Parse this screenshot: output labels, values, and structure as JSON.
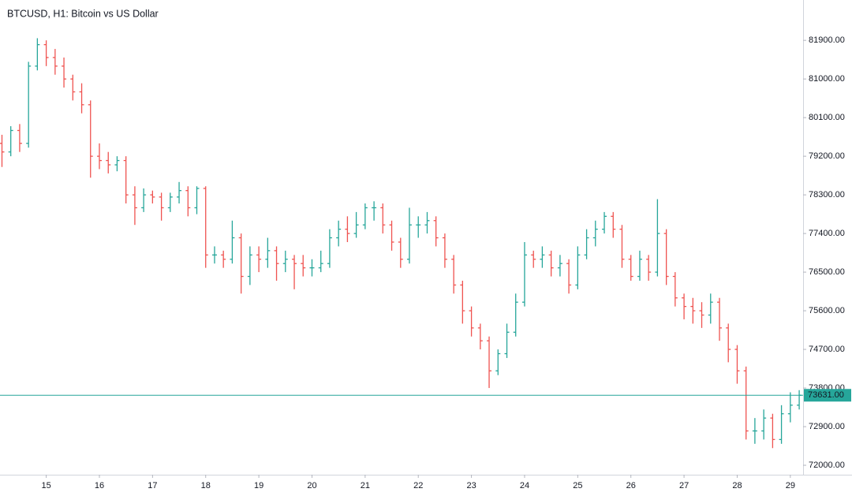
{
  "chart_data": {
    "type": "ohlc",
    "title": "BTCUSD, H1: Bitcoin vs US Dollar",
    "up_color": "#26a69a",
    "down_color": "#ef5350",
    "xlim": [
      14.13,
      29.24
    ],
    "xticks": [
      15,
      16,
      17,
      18,
      19,
      20,
      21,
      22,
      23,
      24,
      25,
      26,
      27,
      28,
      29
    ],
    "ylim": [
      71780,
      82730
    ],
    "yticks": [
      {
        "value": 72000,
        "label": "72000.00"
      },
      {
        "value": 72900,
        "label": "72900.00"
      },
      {
        "value": 73800,
        "label": "73800.00"
      },
      {
        "value": 74700,
        "label": "74700.00"
      },
      {
        "value": 75600,
        "label": "75600.00"
      },
      {
        "value": 76500,
        "label": "76500.00"
      },
      {
        "value": 77400,
        "label": "77400.00"
      },
      {
        "value": 78300,
        "label": "78300.00"
      },
      {
        "value": 79200,
        "label": "79200.00"
      },
      {
        "value": 80100,
        "label": "80100.00"
      },
      {
        "value": 81000,
        "label": "81000.00"
      },
      {
        "value": 81900,
        "label": "81900.00"
      }
    ],
    "price_line": {
      "value": 73631,
      "label": "73631.00",
      "color": "#26a69a"
    },
    "x": [
      14.167,
      14.333,
      14.5,
      14.667,
      14.833,
      15,
      15.167,
      15.333,
      15.5,
      15.667,
      15.833,
      16,
      16.167,
      16.333,
      16.5,
      16.667,
      16.833,
      17,
      17.167,
      17.333,
      17.5,
      17.667,
      17.833,
      18,
      18.167,
      18.333,
      18.5,
      18.667,
      18.833,
      19,
      19.167,
      19.333,
      19.5,
      19.667,
      19.833,
      20,
      20.167,
      20.333,
      20.5,
      20.667,
      20.833,
      21,
      21.167,
      21.333,
      21.5,
      21.667,
      21.833,
      22,
      22.167,
      22.333,
      22.5,
      22.667,
      22.833,
      23,
      23.167,
      23.333,
      23.5,
      23.667,
      23.833,
      24,
      24.167,
      24.333,
      24.5,
      24.667,
      24.833,
      25,
      25.167,
      25.333,
      25.5,
      25.667,
      25.833,
      26,
      26.167,
      26.333,
      26.5,
      26.667,
      26.833,
      27,
      27.167,
      27.333,
      27.5,
      27.667,
      27.833,
      28,
      28.167,
      28.333,
      28.5,
      28.667,
      28.833,
      29,
      29.167
    ],
    "open": [
      79500,
      79300,
      79800,
      79500,
      81300,
      81800,
      81500,
      81300,
      81000,
      80700,
      80400,
      79200,
      79100,
      79000,
      79100,
      78300,
      78000,
      78300,
      78250,
      78000,
      78250,
      78400,
      78000,
      78450,
      76900,
      76900,
      76800,
      77300,
      76400,
      76900,
      76800,
      77000,
      76700,
      76800,
      76700,
      76600,
      76600,
      76700,
      77300,
      77500,
      77400,
      77600,
      78000,
      78000,
      77600,
      77200,
      76800,
      77600,
      77600,
      77700,
      77300,
      76800,
      76200,
      75600,
      75200,
      74900,
      74200,
      74600,
      75100,
      75800,
      76900,
      76800,
      76900,
      76600,
      76700,
      76200,
      76900,
      77300,
      77500,
      77800,
      77500,
      76800,
      76400,
      76800,
      76500,
      77400,
      76400,
      75900,
      75700,
      75600,
      75500,
      75800,
      75200,
      74700,
      74200,
      72800,
      72800,
      73100,
      72600,
      73200,
      73400
    ],
    "high": [
      79700,
      79900,
      79950,
      81400,
      81950,
      81900,
      81700,
      81500,
      81100,
      80900,
      80500,
      79500,
      79300,
      79200,
      79200,
      78500,
      78450,
      78400,
      78350,
      78350,
      78600,
      78500,
      78500,
      78500,
      77100,
      77000,
      77700,
      77400,
      77100,
      77100,
      77300,
      77100,
      77000,
      76900,
      76900,
      76800,
      77000,
      77500,
      77700,
      77800,
      77900,
      78100,
      78150,
      78100,
      77700,
      77300,
      78000,
      77800,
      77900,
      77800,
      77400,
      76900,
      76300,
      75700,
      75300,
      75000,
      74700,
      75300,
      76000,
      77200,
      77000,
      77100,
      77000,
      76900,
      76800,
      77100,
      77500,
      77700,
      77900,
      77900,
      77600,
      76900,
      77000,
      76900,
      78200,
      77500,
      76500,
      76000,
      75900,
      75800,
      76000,
      75900,
      75300,
      74800,
      74300,
      73100,
      73300,
      73200,
      73400,
      73700,
      73750
    ],
    "low": [
      78950,
      79200,
      79300,
      79400,
      81200,
      81300,
      81100,
      80800,
      80500,
      80200,
      78700,
      78900,
      78800,
      78850,
      78100,
      77600,
      77900,
      78100,
      77700,
      77900,
      78100,
      77800,
      77850,
      76600,
      76700,
      76600,
      76700,
      76000,
      76200,
      76500,
      76600,
      76300,
      76500,
      76100,
      76400,
      76400,
      76500,
      76600,
      77100,
      77200,
      77300,
      77500,
      77700,
      77400,
      77000,
      76600,
      76700,
      77300,
      77400,
      77100,
      76600,
      76000,
      75300,
      75000,
      74700,
      73800,
      74100,
      74500,
      75000,
      75700,
      76600,
      76600,
      76400,
      76400,
      76000,
      76100,
      76800,
      77100,
      77400,
      77300,
      76600,
      76300,
      76300,
      76300,
      76400,
      76200,
      75700,
      75400,
      75300,
      75200,
      75300,
      74900,
      74400,
      73900,
      72600,
      72500,
      72600,
      72400,
      72500,
      73000,
      73300
    ],
    "close": [
      79300,
      79800,
      79500,
      81300,
      81800,
      81500,
      81300,
      81000,
      80700,
      80400,
      79200,
      79100,
      79000,
      79100,
      78300,
      78000,
      78300,
      78250,
      78000,
      78250,
      78400,
      78000,
      78450,
      76900,
      76900,
      76800,
      77300,
      76400,
      76900,
      76800,
      77000,
      76700,
      76800,
      76700,
      76600,
      76600,
      76700,
      77300,
      77500,
      77400,
      77600,
      78000,
      78000,
      77600,
      77200,
      76800,
      77600,
      77600,
      77700,
      77300,
      76800,
      76200,
      75600,
      75200,
      74900,
      74200,
      74600,
      75100,
      75800,
      76900,
      76800,
      76900,
      76600,
      76700,
      76200,
      76900,
      77300,
      77500,
      77800,
      77500,
      76800,
      76400,
      76800,
      76500,
      77400,
      76400,
      75900,
      75700,
      75600,
      75500,
      75800,
      75200,
      74700,
      74200,
      72800,
      72800,
      73100,
      72600,
      73200,
      73400,
      73631
    ]
  }
}
